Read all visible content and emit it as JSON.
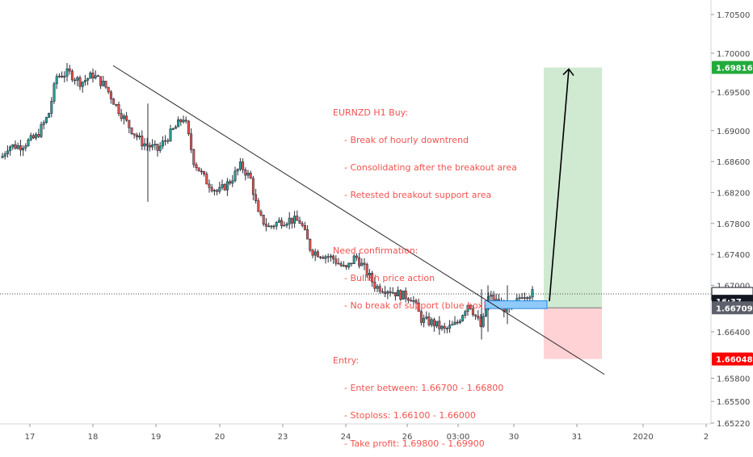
{
  "chart_data": {
    "type": "candlestick",
    "symbol": "EURNZD",
    "timeframe": "H1",
    "ylim": [
      1.6522,
      1.708
    ],
    "y_ticks": [
      "1.70500",
      "1.70000",
      "1.69500",
      "1.69000",
      "1.68600",
      "1.68200",
      "1.67800",
      "1.67400",
      "1.67000",
      "1.66400",
      "1.65800",
      "1.65500",
      "1.65220"
    ],
    "x_ticks": [
      "17",
      "18",
      "19",
      "20",
      "23",
      "24",
      "26",
      "03:00",
      "30",
      "31",
      "2020",
      "2"
    ],
    "price_labels": [
      {
        "text": "1.69816",
        "value": 1.69816,
        "color": "#22ab3c"
      },
      {
        "text": "1.66890",
        "value": 1.6689,
        "color": "#ffffff"
      },
      {
        "text": "16:37",
        "value": 1.66795,
        "color": "#131722"
      },
      {
        "text": "1.66709",
        "value": 1.66709,
        "color": "#5d606b"
      },
      {
        "text": "1.66048",
        "value": 1.66048,
        "color": "#ff0000"
      }
    ],
    "current_price": 1.6689,
    "trade": {
      "entry": 1.66709,
      "stop": 1.66048,
      "target": 1.69816
    },
    "support_zone": [
      1.667,
      1.668
    ],
    "trendline": {
      "from": [
        18,
        1.6984
      ],
      "to": [
        31.4,
        1.6585
      ]
    },
    "annotation": {
      "title": "EURNZD H1 Buy:",
      "points1": [
        "- Break of hourly downtrend",
        "- Consolidating after the breakout area",
        "- Retested breakout support area"
      ],
      "confirm_title": "Need confirmation:",
      "points2": [
        "- Bullish price action",
        "- No break of support (blue box)"
      ],
      "entry_title": "Entry:",
      "points3": [
        "- Enter between: 1.66700 - 1.66800",
        "- Stoploss: 1.66100 - 1.66000",
        "- Take profit: 1.69800 - 1.69900"
      ]
    },
    "colors": {
      "up": "#26a69a",
      "down": "#ef5350",
      "profit": "#c8e6c9",
      "loss": "#ffcdd2",
      "support": "#90caf9",
      "text": "#f05350"
    }
  }
}
